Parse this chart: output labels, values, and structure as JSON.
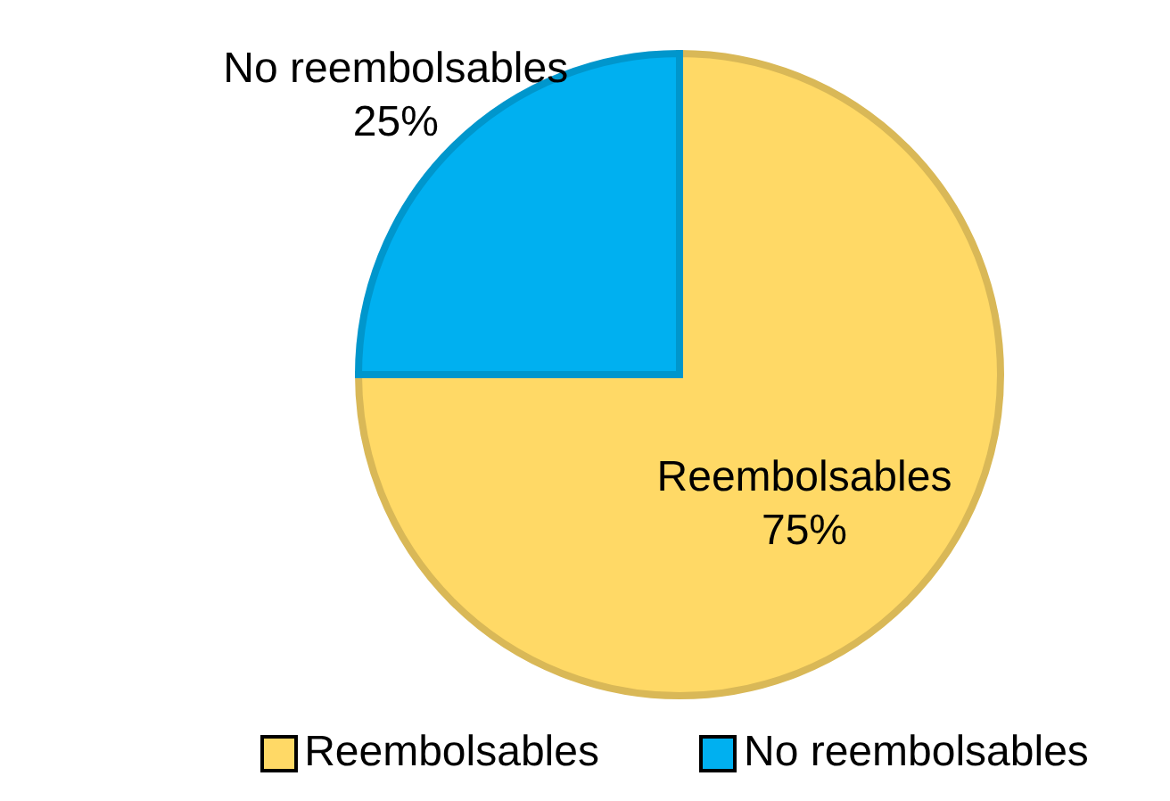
{
  "chart_data": {
    "type": "pie",
    "categories": [
      "Reembolsables",
      "No reembolsables"
    ],
    "values": [
      75,
      25
    ],
    "value_labels": [
      "75%",
      "25%"
    ],
    "colors": [
      "#ffd966",
      "#00b0f0"
    ],
    "legend": "bottom"
  }
}
